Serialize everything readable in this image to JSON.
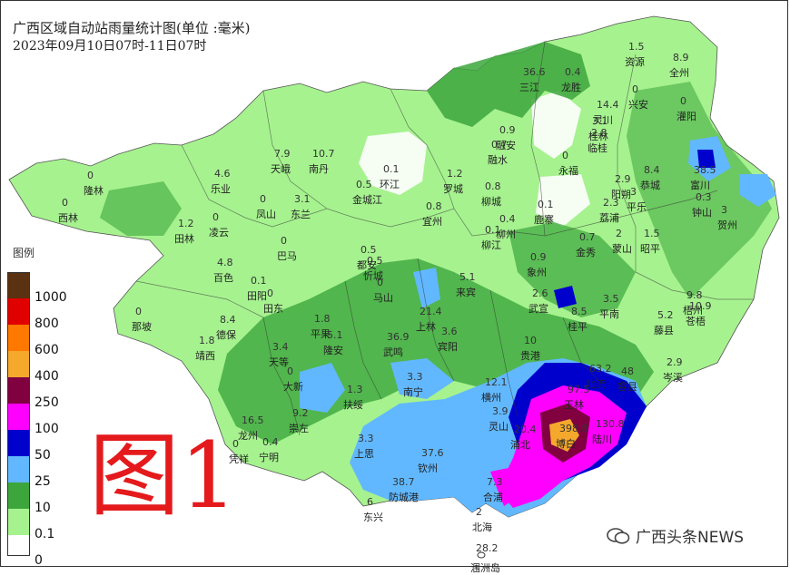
{
  "header": {
    "title": "广西区域自动站雨量统计图(单位 :毫米)",
    "time_range": "2023年09月10日07时-11日07时"
  },
  "legend": {
    "title": "图例",
    "levels": [
      {
        "label": "1000",
        "color": "#5a3212"
      },
      {
        "label": "800",
        "color": "#e00000"
      },
      {
        "label": "600",
        "color": "#ff7800"
      },
      {
        "label": "400",
        "color": "#f4a82c"
      },
      {
        "label": "250",
        "color": "#800040"
      },
      {
        "label": "100",
        "color": "#ff00ff"
      },
      {
        "label": "50",
        "color": "#0000cc"
      },
      {
        "label": "25",
        "color": "#61b8ff"
      },
      {
        "label": "10",
        "color": "#3ca63c"
      },
      {
        "label": "0.1",
        "color": "#a6f28f"
      },
      {
        "label": "0",
        "color": "#ffffff"
      }
    ]
  },
  "big_label": "图1",
  "watermark": "广西头条NEWS",
  "map": {
    "places": [
      {
        "name": "资源",
        "value": "1.5"
      },
      {
        "name": "全州",
        "value": "8.9"
      },
      {
        "name": "三江",
        "value": "36.6"
      },
      {
        "name": "龙胜",
        "value": "0.4"
      },
      {
        "name": "兴安",
        "value": "0"
      },
      {
        "name": "灌阳",
        "value": "0"
      },
      {
        "name": "灵川",
        "value": "14.4"
      },
      {
        "name": "桂林",
        "value": "3.1"
      },
      {
        "name": "临桂",
        "value": "2.8"
      },
      {
        "name": "融安",
        "value": "0.9"
      },
      {
        "name": "融水",
        "value": "0.7"
      },
      {
        "name": "永福",
        "value": "0"
      },
      {
        "name": "天峨",
        "value": "7.9"
      },
      {
        "name": "南丹",
        "value": "10.7"
      },
      {
        "name": "环江",
        "value": "0.1"
      },
      {
        "name": "罗城",
        "value": "1.2"
      },
      {
        "name": "阳朔",
        "value": "2.9"
      },
      {
        "name": "恭城",
        "value": "8.4"
      },
      {
        "name": "富川",
        "value": "38.5"
      },
      {
        "name": "隆林",
        "value": "0"
      },
      {
        "name": "乐业",
        "value": "4.6"
      },
      {
        "name": "金城江",
        "value": "0.5"
      },
      {
        "name": "柳城",
        "value": "0.8"
      },
      {
        "name": "平乐",
        "value": "3"
      },
      {
        "name": "钟山",
        "value": "0.3"
      },
      {
        "name": "西林",
        "value": "0"
      },
      {
        "name": "凤山",
        "value": "0"
      },
      {
        "name": "东兰",
        "value": "3.1"
      },
      {
        "name": "宜州",
        "value": "0.8"
      },
      {
        "name": "柳州",
        "value": "0.4"
      },
      {
        "name": "鹿寨",
        "value": "0.1"
      },
      {
        "name": "荔浦",
        "value": "2.3"
      },
      {
        "name": "贺州",
        "value": "3"
      },
      {
        "name": "田林",
        "value": "1.2"
      },
      {
        "name": "凌云",
        "value": "0"
      },
      {
        "name": "柳江",
        "value": "0.1"
      },
      {
        "name": "金秀",
        "value": "0.7"
      },
      {
        "name": "蒙山",
        "value": "2"
      },
      {
        "name": "昭平",
        "value": "1.5"
      },
      {
        "name": "巴马",
        "value": "0"
      },
      {
        "name": "百色",
        "value": "4.8"
      },
      {
        "name": "忻城",
        "value": "0.5"
      },
      {
        "name": "象州",
        "value": "0.9"
      },
      {
        "name": "田阳",
        "value": "0.1"
      },
      {
        "name": "都安",
        "value": "0.5"
      },
      {
        "name": "来宾",
        "value": "5.1"
      },
      {
        "name": "武宣",
        "value": "2.6"
      },
      {
        "name": "苍梧",
        "value": "10.9"
      },
      {
        "name": "梧州",
        "value": "9.8"
      },
      {
        "name": "那坡",
        "value": "0"
      },
      {
        "name": "田东",
        "value": "0"
      },
      {
        "name": "马山",
        "value": "0"
      },
      {
        "name": "平南",
        "value": "3.5"
      },
      {
        "name": "藤县",
        "value": "5.2"
      },
      {
        "name": "德保",
        "value": "8.4"
      },
      {
        "name": "上林",
        "value": "21.4"
      },
      {
        "name": "桂平",
        "value": "8.5"
      },
      {
        "name": "靖西",
        "value": "1.8"
      },
      {
        "name": "平果",
        "value": "1.8"
      },
      {
        "name": "隆安",
        "value": "5.1"
      },
      {
        "name": "武鸣",
        "value": "36.9"
      },
      {
        "name": "宾阳",
        "value": "3.6"
      },
      {
        "name": "贵港",
        "value": "10"
      },
      {
        "name": "岑溪",
        "value": "2.9"
      },
      {
        "name": "天等",
        "value": "3.4"
      },
      {
        "name": "容县",
        "value": "48"
      },
      {
        "name": "北流",
        "value": "63.2"
      },
      {
        "name": "大新",
        "value": "0"
      },
      {
        "name": "南宁",
        "value": "3.3"
      },
      {
        "name": "横州",
        "value": "12.1"
      },
      {
        "name": "玉林",
        "value": "97.5"
      },
      {
        "name": "扶绥",
        "value": "1.3"
      },
      {
        "name": "崇左",
        "value": "9.2"
      },
      {
        "name": "灵山",
        "value": "3.9"
      },
      {
        "name": "浦北",
        "value": "20.4"
      },
      {
        "name": "博白",
        "value": "398.8"
      },
      {
        "name": "陆川",
        "value": "130.8"
      },
      {
        "name": "龙州",
        "value": "16.5"
      },
      {
        "name": "凭祥",
        "value": "0"
      },
      {
        "name": "宁明",
        "value": "0.4"
      },
      {
        "name": "上思",
        "value": "3.3"
      },
      {
        "name": "钦州",
        "value": "37.6"
      },
      {
        "name": "合浦",
        "value": "7.3"
      },
      {
        "name": "东兴",
        "value": "6"
      },
      {
        "name": "防城港",
        "value": "38.7"
      },
      {
        "name": "北海",
        "value": "2"
      },
      {
        "name": "涠洲岛",
        "value": "28.2"
      }
    ]
  }
}
